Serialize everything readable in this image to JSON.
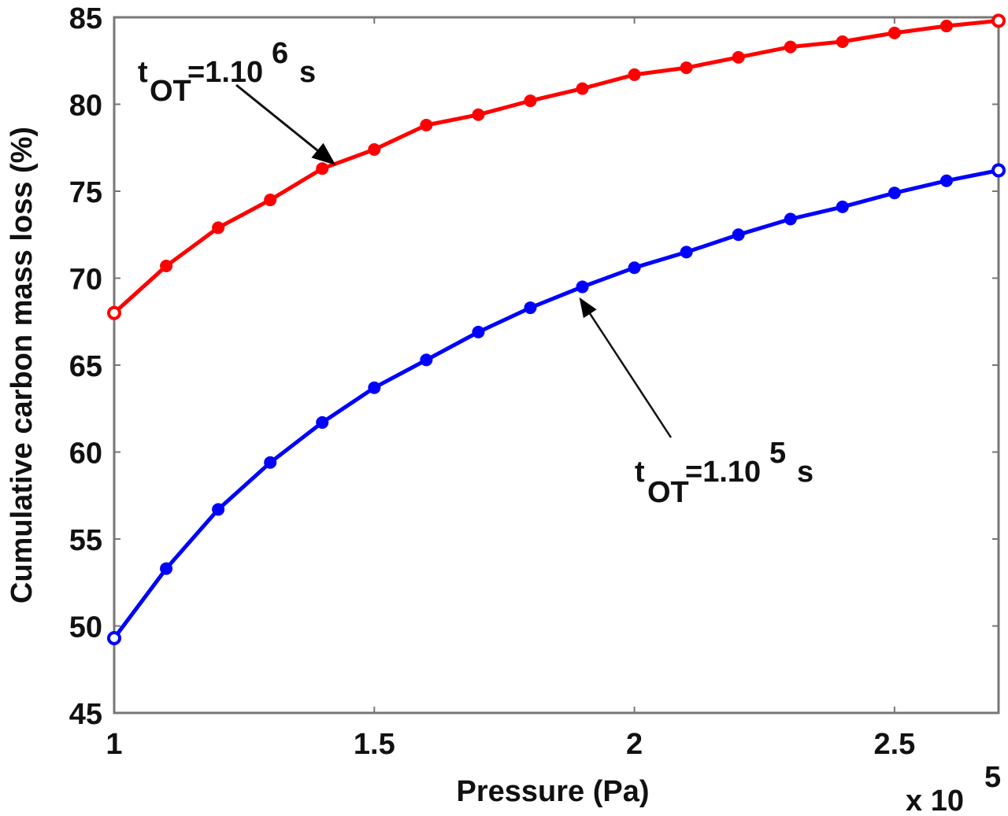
{
  "chart_data": {
    "type": "line",
    "title": "",
    "xlabel": "Pressure (Pa)",
    "ylabel": "Cumulative carbon mass loss (%)",
    "x_multiplier": "x 10^5",
    "xlim": [
      1,
      2.7
    ],
    "ylim": [
      45,
      85
    ],
    "xticks": [
      1,
      1.5,
      2,
      2.5
    ],
    "xtick_labels": [
      "1",
      "1.5",
      "2",
      "2.5"
    ],
    "yticks": [
      45,
      50,
      55,
      60,
      65,
      70,
      75,
      80,
      85
    ],
    "ytick_labels": [
      "45",
      "50",
      "55",
      "60",
      "65",
      "70",
      "75",
      "80",
      "85"
    ],
    "grid": false,
    "legend": "none (inline annotations with arrows)",
    "x": [
      1.0,
      1.1,
      1.2,
      1.3,
      1.4,
      1.5,
      1.6,
      1.7,
      1.8,
      1.9,
      2.0,
      2.1,
      2.2,
      2.3,
      2.4,
      2.5,
      2.6,
      2.7
    ],
    "series": [
      {
        "name": "tOT=1.10^6 s",
        "color": "#ff0000",
        "marker": "filled circle (open at ends)",
        "values": [
          68.0,
          70.7,
          72.9,
          74.5,
          76.3,
          77.4,
          78.8,
          79.4,
          80.2,
          80.9,
          81.7,
          82.1,
          82.7,
          83.3,
          83.6,
          84.1,
          84.5,
          84.8
        ]
      },
      {
        "name": "tOT=1.10^5 s",
        "color": "#0000ff",
        "marker": "filled circle (open at ends)",
        "values": [
          49.3,
          53.3,
          56.7,
          59.4,
          61.7,
          63.7,
          65.3,
          66.9,
          68.3,
          69.5,
          70.6,
          71.5,
          72.5,
          73.4,
          74.1,
          74.9,
          75.6,
          76.2
        ]
      }
    ],
    "annotations": [
      {
        "text_main": "t",
        "subscript": "OT",
        "text_rest": "=1.10",
        "superscript": "6",
        "unit": " s",
        "points_to_series": 0,
        "arrow_target_x": 1.43
      },
      {
        "text_main": "t",
        "subscript": "OT",
        "text_rest": "=1.10",
        "superscript": "5",
        "unit": " s",
        "points_to_series": 1,
        "arrow_target_x": 1.9
      }
    ]
  },
  "labels": {
    "xlabel": "Pressure (Pa)",
    "ylabel": "Cumulative carbon mass loss (%)",
    "x_mult_base": "x 10",
    "x_mult_exp": "5",
    "annot_red": {
      "t": "t",
      "sub": "OT",
      "eq": "=1.10",
      "sup": "6",
      "unit": "s"
    },
    "annot_blue": {
      "t": "t",
      "sub": "OT",
      "eq": "=1.10",
      "sup": "5",
      "unit": "s"
    }
  }
}
